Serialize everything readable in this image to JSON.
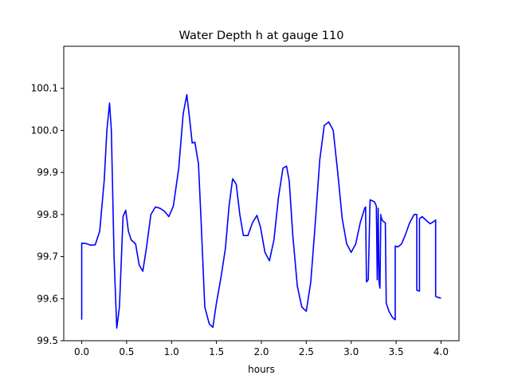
{
  "chart_data": {
    "type": "line",
    "title": "Water Depth h at gauge 110",
    "xlabel": "hours",
    "ylabel": "",
    "xlim": [
      -0.2,
      4.2
    ],
    "ylim": [
      99.5,
      100.2
    ],
    "xticks": [
      0.0,
      0.5,
      1.0,
      1.5,
      2.0,
      2.5,
      3.0,
      3.5,
      4.0
    ],
    "xtick_labels": [
      "0.0",
      "0.5",
      "1.0",
      "1.5",
      "2.0",
      "2.5",
      "3.0",
      "3.5",
      "4.0"
    ],
    "yticks": [
      99.5,
      99.6,
      99.7,
      99.8,
      99.9,
      100.0,
      100.1
    ],
    "ytick_labels": [
      "99.5",
      "99.6",
      "99.7",
      "99.8",
      "99.9",
      "100.0",
      "100.1"
    ],
    "grid": false,
    "colors": {
      "line": "#0000ff",
      "axes": "#000000",
      "background": "#ffffff"
    },
    "series": [
      {
        "x": [
          0.0,
          0.0,
          0.05,
          0.1,
          0.15,
          0.2,
          0.25,
          0.28,
          0.31,
          0.33,
          0.36,
          0.39,
          0.42,
          0.46,
          0.49,
          0.52,
          0.55,
          0.6,
          0.64,
          0.68,
          0.72,
          0.77,
          0.82,
          0.87,
          0.92,
          0.97,
          1.02,
          1.08,
          1.13,
          1.17,
          1.2,
          1.23,
          1.26,
          1.3,
          1.33,
          1.37,
          1.42,
          1.46,
          1.5,
          1.55,
          1.6,
          1.64,
          1.68,
          1.72,
          1.76,
          1.8,
          1.85,
          1.9,
          1.95,
          1.99,
          2.04,
          2.09,
          2.14,
          2.19,
          2.24,
          2.28,
          2.31,
          2.35,
          2.4,
          2.45,
          2.5,
          2.55,
          2.6,
          2.65,
          2.7,
          2.75,
          2.8,
          2.85,
          2.9,
          2.95,
          3.0,
          3.05,
          3.1,
          3.15,
          3.16,
          3.17,
          3.19,
          3.21,
          3.24,
          3.26,
          3.28,
          3.29,
          3.3,
          3.31,
          3.32,
          3.33,
          3.33,
          3.35,
          3.38,
          3.39,
          3.42,
          3.46,
          3.49,
          3.49,
          3.52,
          3.56,
          3.6,
          3.65,
          3.7,
          3.73,
          3.73,
          3.76,
          3.76,
          3.79,
          3.84,
          3.88,
          3.91,
          3.94,
          3.94,
          3.97,
          4.0
        ],
        "y": [
          99.55,
          99.732,
          99.731,
          99.727,
          99.728,
          99.76,
          99.88,
          100.0,
          100.065,
          100.0,
          99.7,
          99.53,
          99.58,
          99.795,
          99.81,
          99.76,
          99.74,
          99.73,
          99.68,
          99.665,
          99.72,
          99.8,
          99.818,
          99.815,
          99.808,
          99.795,
          99.82,
          99.91,
          100.04,
          100.085,
          100.03,
          99.97,
          99.972,
          99.92,
          99.78,
          99.58,
          99.54,
          99.532,
          99.59,
          99.65,
          99.72,
          99.82,
          99.885,
          99.872,
          99.8,
          99.75,
          99.75,
          99.78,
          99.798,
          99.77,
          99.71,
          99.69,
          99.74,
          99.84,
          99.91,
          99.915,
          99.88,
          99.75,
          99.63,
          99.58,
          99.57,
          99.64,
          99.78,
          99.93,
          100.012,
          100.02,
          100.0,
          99.9,
          99.79,
          99.73,
          99.71,
          99.73,
          99.78,
          99.815,
          99.818,
          99.64,
          99.645,
          99.835,
          99.832,
          99.83,
          99.82,
          99.645,
          99.815,
          99.64,
          99.625,
          99.8,
          99.795,
          99.785,
          99.78,
          99.59,
          99.57,
          99.555,
          99.55,
          99.725,
          99.723,
          99.73,
          99.75,
          99.78,
          99.8,
          99.8,
          99.62,
          99.618,
          99.79,
          99.795,
          99.785,
          99.778,
          99.782,
          99.787,
          99.605,
          99.603,
          99.601
        ]
      }
    ]
  }
}
